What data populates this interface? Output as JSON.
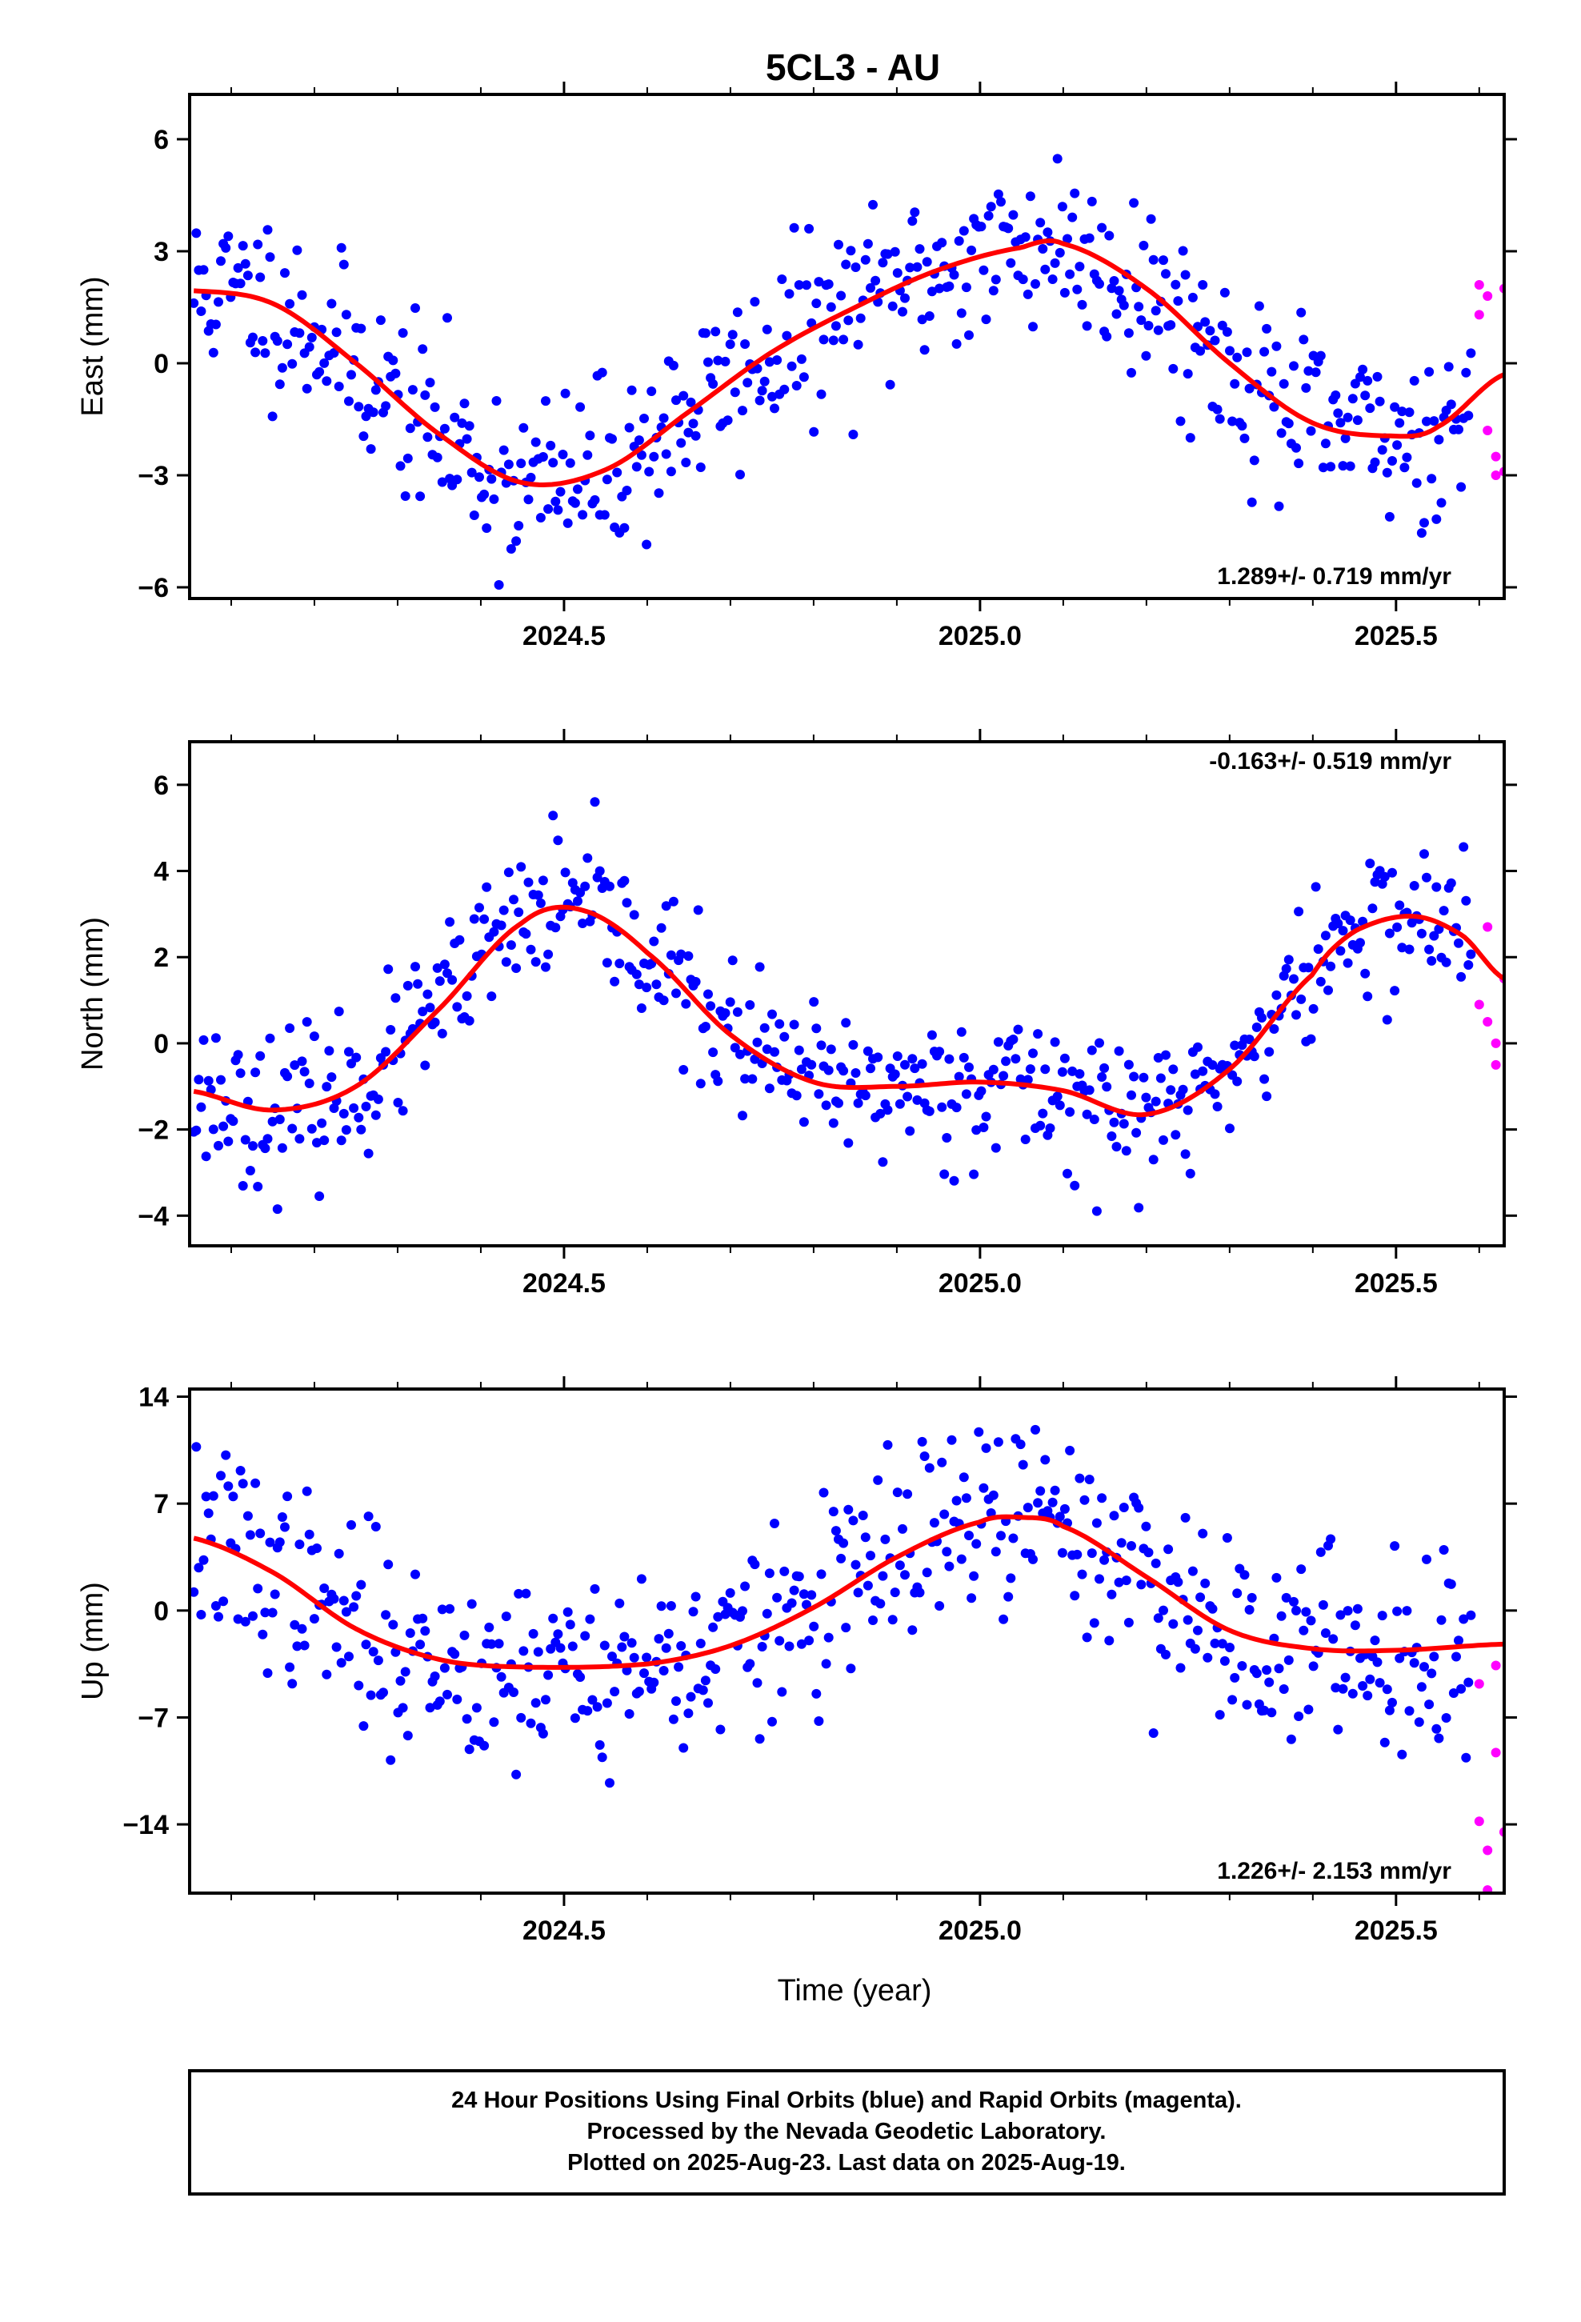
{
  "title": "5CL3 - AU",
  "x_axis_label": "Time (year)",
  "footer": {
    "line1": "24 Hour Positions Using Final Orbits (blue) and Rapid Orbits (magenta).",
    "line2": "Processed by the Nevada Geodetic Laboratory.",
    "line3": "Plotted on 2025-Aug-23. Last data on 2025-Aug-19."
  },
  "colors": {
    "final_orbits": "#0000ff",
    "rapid_orbits": "#ff00ff",
    "model_fit": "#ff0000",
    "frame": "#000000"
  },
  "chart_data": [
    {
      "type": "scatter",
      "component": "East",
      "ylabel": "East (mm)",
      "rate": "1.289+/- 0.719 mm/yr",
      "rate_position": "bottom-right",
      "xlim": [
        2024.05,
        2025.63
      ],
      "ylim": [
        -6.3,
        7.2
      ],
      "xticks": [
        2024.5,
        2025.0,
        2025.5
      ],
      "xtick_labels": [
        "2024.5",
        "2025.0",
        "2025.5"
      ],
      "yticks": [
        6,
        3,
        0,
        -3,
        -6
      ],
      "ytick_labels": [
        "6",
        "3",
        "0",
        "−3",
        "−6"
      ],
      "fit": {
        "offset": 0.0,
        "trend": 1.289,
        "cos1": 0.0,
        "sin1": 0.0,
        "cos2": 0.0,
        "sin2": 0.0,
        "knots_x": [
          2024.05,
          2024.15,
          2024.25,
          2024.35,
          2024.45,
          2024.55,
          2024.65,
          2024.75,
          2024.85,
          2024.95,
          2025.05,
          2025.1,
          2025.2,
          2025.3,
          2025.4,
          2025.5,
          2025.55,
          2025.63
        ],
        "knots_y": [
          1.95,
          1.6,
          0.0,
          -1.9,
          -3.2,
          -2.85,
          -1.3,
          0.3,
          1.5,
          2.5,
          3.1,
          3.2,
          2.0,
          0.0,
          -1.6,
          -1.95,
          -1.7,
          -0.3
        ]
      },
      "rapid": {
        "x": [
          2025.6,
          2025.6,
          2025.61,
          2025.61,
          2025.62,
          2025.62,
          2025.63,
          2025.63
        ],
        "y": [
          1.3,
          2.1,
          1.8,
          -1.8,
          -2.5,
          -3.0,
          2.0,
          -2.9
        ]
      },
      "final_sample": {
        "count": 520,
        "scatter": 1.2,
        "seed": 11
      }
    },
    {
      "type": "scatter",
      "component": "North",
      "ylabel": "North (mm)",
      "rate": "-0.163+/- 0.519 mm/yr",
      "rate_position": "top-right",
      "xlim": [
        2024.05,
        2025.63
      ],
      "ylim": [
        -4.7,
        7.0
      ],
      "xticks": [
        2024.5,
        2025.0,
        2025.5
      ],
      "xtick_labels": [
        "2024.5",
        "2025.0",
        "2025.5"
      ],
      "yticks": [
        6,
        4,
        2,
        0,
        -2,
        -4
      ],
      "ytick_labels": [
        "6",
        "4",
        "2",
        "0",
        "−2",
        "−4"
      ],
      "fit": {
        "knots_x": [
          2024.05,
          2024.15,
          2024.25,
          2024.35,
          2024.45,
          2024.52,
          2024.6,
          2024.7,
          2024.8,
          2024.9,
          2025.0,
          2025.1,
          2025.2,
          2025.3,
          2025.4,
          2025.45,
          2025.52,
          2025.58,
          2025.63
        ],
        "knots_y": [
          -1.1,
          -1.55,
          -1.0,
          0.8,
          2.8,
          3.1,
          2.1,
          0.2,
          -0.9,
          -1.0,
          -0.9,
          -1.1,
          -1.65,
          -0.6,
          1.6,
          2.6,
          2.95,
          2.5,
          1.5
        ]
      },
      "rapid": {
        "x": [
          2025.6,
          2025.61,
          2025.61,
          2025.62,
          2025.62,
          2025.63
        ],
        "y": [
          0.9,
          2.7,
          0.5,
          0.0,
          -0.5,
          1.5
        ]
      },
      "final_sample": {
        "count": 520,
        "scatter": 0.85,
        "seed": 23
      }
    },
    {
      "type": "scatter",
      "component": "Up",
      "ylabel": "Up (mm)",
      "rate": "1.226+/- 2.153 mm/yr",
      "rate_position": "bottom-right",
      "xlim": [
        2024.05,
        2025.63
      ],
      "ylim": [
        -18.5,
        14.5
      ],
      "xticks": [
        2024.5,
        2025.0,
        2025.5
      ],
      "xtick_labels": [
        "2024.5",
        "2025.0",
        "2025.5"
      ],
      "yticks": [
        14,
        7,
        0,
        -7,
        -14
      ],
      "ytick_labels": [
        "14",
        "7",
        "0",
        "−7",
        "−14"
      ],
      "fit": {
        "knots_x": [
          2024.05,
          2024.15,
          2024.25,
          2024.35,
          2024.45,
          2024.6,
          2024.7,
          2024.8,
          2024.9,
          2025.0,
          2025.05,
          2025.1,
          2025.2,
          2025.3,
          2025.4,
          2025.5,
          2025.63
        ],
        "knots_y": [
          4.8,
          2.5,
          -1.2,
          -3.2,
          -3.7,
          -3.5,
          -2.3,
          0.2,
          3.5,
          5.8,
          6.1,
          5.5,
          2.2,
          -1.3,
          -2.5,
          -2.6,
          -2.2
        ]
      },
      "rapid": {
        "x": [
          2025.6,
          2025.6,
          2025.61,
          2025.61,
          2025.62,
          2025.62,
          2025.63,
          2025.63
        ],
        "y": [
          -4.8,
          -13.8,
          -15.7,
          -18.3,
          -3.6,
          -9.3,
          -14.5,
          -14.5
        ]
      },
      "final_sample": {
        "count": 520,
        "scatter": 3.2,
        "seed": 37
      }
    }
  ]
}
